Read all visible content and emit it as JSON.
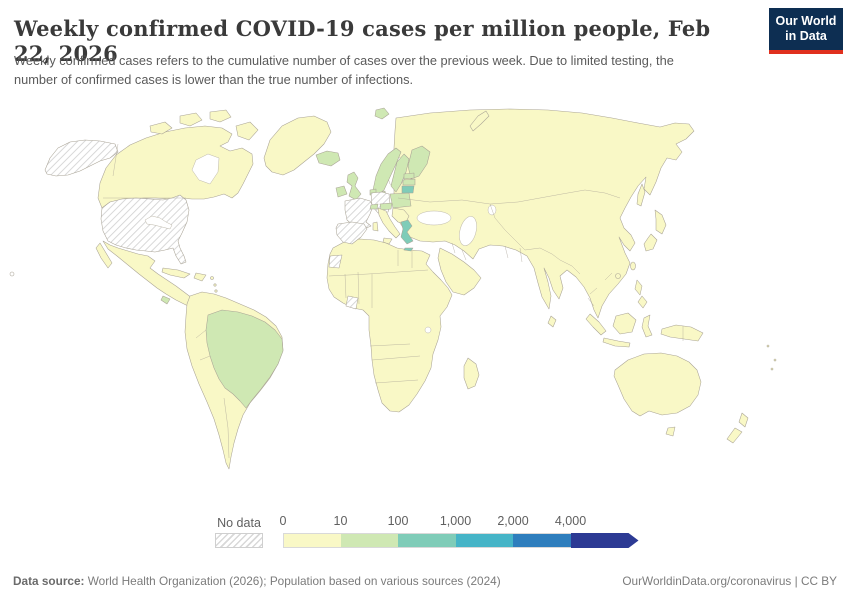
{
  "header": {
    "title": "Weekly confirmed COVID-19 cases per million people, Feb 22, 2026",
    "subtitle": "Weekly confirmed cases refers to the cumulative number of cases over the previous week. Due to limited testing, the number of confirmed cases is lower than the true number of infections.",
    "logo": {
      "line1": "Our World",
      "line2": "in Data",
      "bg_color": "#0d2e52",
      "accent_color": "#e0301e"
    }
  },
  "legend": {
    "no_data_label": "No data",
    "ticks": [
      "0",
      "10",
      "100",
      "1,000",
      "2,000",
      "4,000"
    ],
    "bin_colors": [
      "#f9f8c6",
      "#cfe8b3",
      "#7fccb8",
      "#45b4c7",
      "#2e7ebd",
      "#2c3a94"
    ]
  },
  "footer": {
    "datasource_label": "Data source:",
    "datasource_text": " World Health Organization (2026); Population based on various sources (2024)",
    "link": "OurWorldinData.org/coronavirus",
    "separator": " | ",
    "license": "CC BY"
  },
  "chart_data": {
    "type": "choropleth",
    "title": "Weekly confirmed COVID-19 cases per million people",
    "date": "Feb 22, 2026",
    "unit": "weekly confirmed cases per million people",
    "legend_position": "bottom",
    "bins": [
      {
        "range": "0-10",
        "color": "#f9f8c6"
      },
      {
        "range": "10-100",
        "color": "#cfe8b3"
      },
      {
        "range": "100-1,000",
        "color": "#7fccb8"
      },
      {
        "range": "1,000-2,000",
        "color": "#45b4c7"
      },
      {
        "range": "2,000-4,000",
        "color": "#2e7ebd"
      },
      {
        "range": "4,000+",
        "color": "#2c3a94"
      }
    ],
    "bin_fills": {
      "0-10": "#f9f8c6",
      "10-100": "#cfe8b3",
      "100-1000": "#7fccb8",
      "1000-2000": "#45b4c7",
      "2000-4000": "#2e7ebd",
      "4000+": "#2c3a94",
      "no-data": "hatch"
    },
    "default_bin": "0-10",
    "country_bins": {
      "alaska": "no-data",
      "united-states": "no-data",
      "hawaii": "no-data",
      "france": "no-data",
      "germany": "no-data",
      "spain": "no-data",
      "cote-divoire": "no-data",
      "western-sahara": "no-data",
      "brazil": "10-100",
      "costa-rica": "10-100",
      "iceland": "10-100",
      "ireland": "10-100",
      "united-kingdom": "10-100",
      "norway": "10-100",
      "svalbard": "10-100",
      "sweden": "10-100",
      "finland": "10-100",
      "denmark": "10-100",
      "estonia": "10-100",
      "latvia": "10-100",
      "poland": "10-100",
      "netherlands": "10-100",
      "switzerland": "10-100",
      "austria": "10-100",
      "greece": "100-1000",
      "crete": "100-1000",
      "lithuania": "100-1000"
    },
    "no_data_countries": [
      "United States",
      "France",
      "Germany",
      "Spain",
      "Côte d'Ivoire",
      "Western Sahara"
    ]
  }
}
